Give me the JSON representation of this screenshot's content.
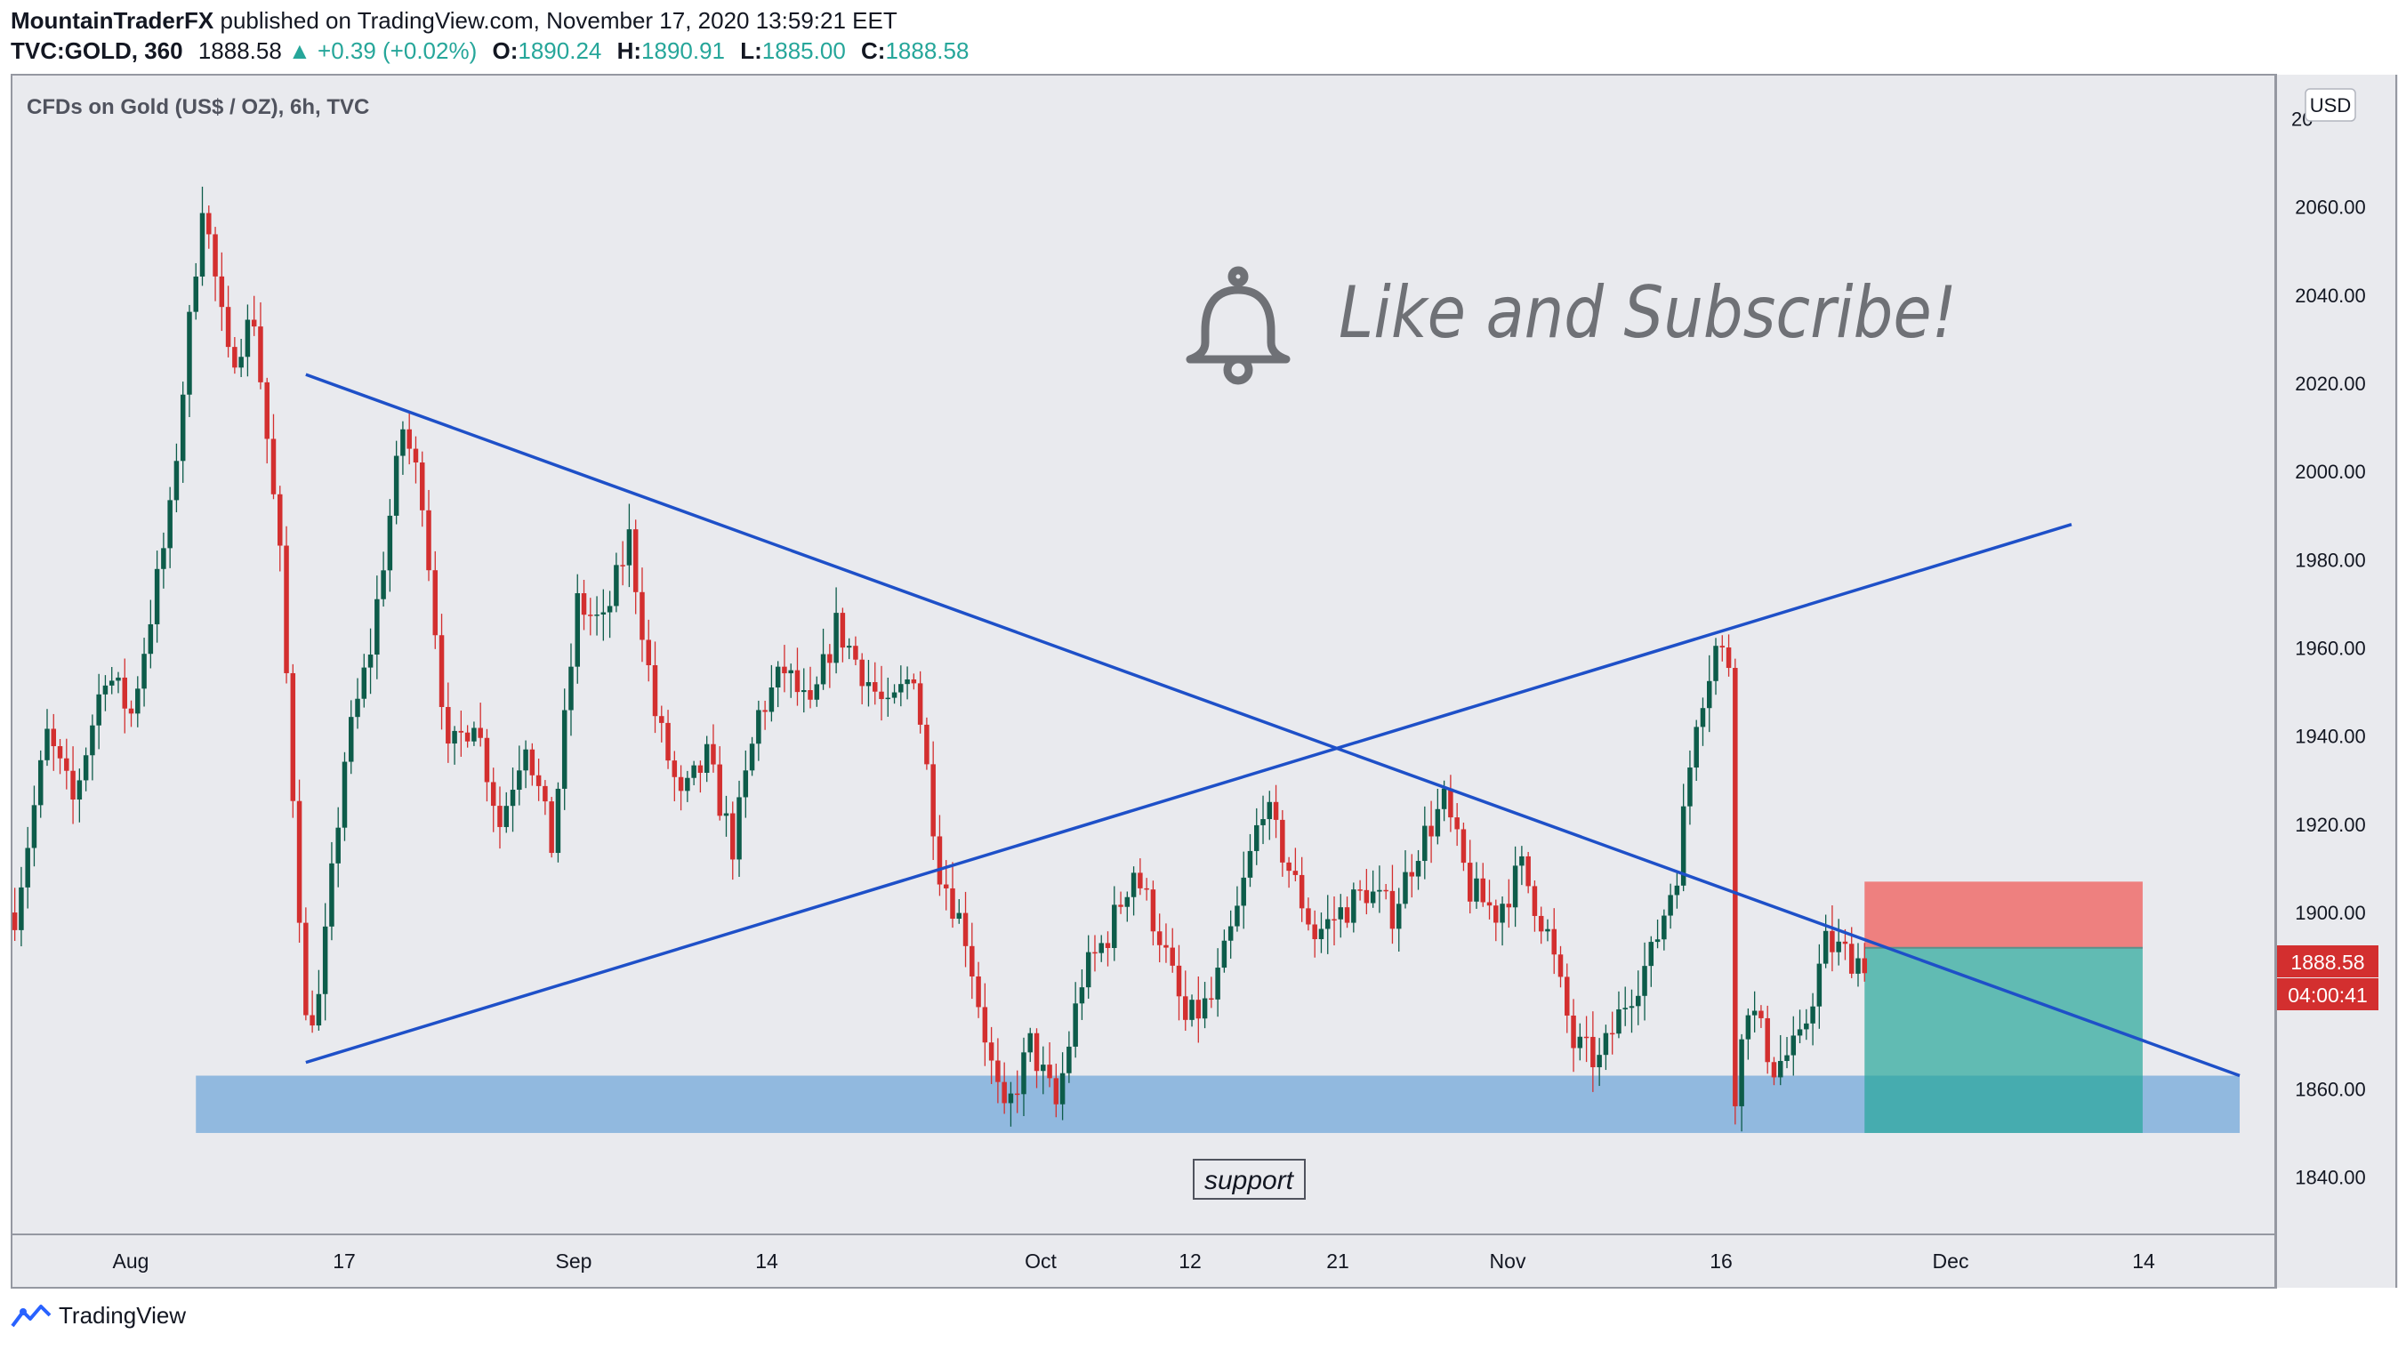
{
  "header": {
    "author": "MountainTraderFX",
    "published_text": "published on TradingView.com, November 17, 2020 13:59:21 EET",
    "symbol": "TVC:GOLD, 360",
    "last": "1888.58",
    "change": "+0.39 (+0.02%)",
    "open_label": "O:",
    "open": "1890.24",
    "high_label": "H:",
    "high": "1890.91",
    "low_label": "L:",
    "low": "1885.00",
    "close_label": "C:",
    "close": "1888.58"
  },
  "chart_data": {
    "type": "candlestick",
    "title": "CFDs on Gold (US$ / OZ), 6h, TVC",
    "currency": "USD",
    "x_ticks": [
      "Aug",
      "17",
      "Sep",
      "14",
      "Oct",
      "12",
      "21",
      "Nov",
      "16",
      "Dec",
      "14"
    ],
    "y_ticks": [
      1840,
      1860,
      1880,
      1900,
      1920,
      1940,
      1960,
      1980,
      2000,
      2020,
      2040,
      2060
    ],
    "top_tick_partial": "20",
    "ylim": [
      1827,
      2090
    ],
    "price_label": "1888.58",
    "countdown": "04:00:41",
    "annotation_text": "Like and Subscribe!",
    "support_label": "support",
    "colors": {
      "up": "#0d5c4a",
      "down": "#d32f2f",
      "trend": "#1e50c8",
      "support_zone": "#5b9bd5",
      "stop_zone": "#ef5350",
      "target_zone": "#26a69a",
      "background": "#e9eaee"
    },
    "price_path": [
      [
        0,
        1900
      ],
      [
        5,
        1940
      ],
      [
        9,
        1925
      ],
      [
        14,
        1955
      ],
      [
        18,
        1945
      ],
      [
        24,
        1990
      ],
      [
        29,
        2062
      ],
      [
        33,
        2025
      ],
      [
        37,
        2035
      ],
      [
        41,
        1980
      ],
      [
        45,
        1875
      ],
      [
        47,
        1880
      ],
      [
        51,
        1935
      ],
      [
        55,
        1960
      ],
      [
        60,
        2010
      ],
      [
        63,
        1995
      ],
      [
        67,
        1935
      ],
      [
        71,
        1945
      ],
      [
        75,
        1920
      ],
      [
        79,
        1940
      ],
      [
        83,
        1915
      ],
      [
        87,
        1970
      ],
      [
        91,
        1965
      ],
      [
        95,
        1985
      ],
      [
        99,
        1945
      ],
      [
        103,
        1925
      ],
      [
        107,
        1935
      ],
      [
        111,
        1915
      ],
      [
        115,
        1945
      ],
      [
        119,
        1955
      ],
      [
        123,
        1945
      ],
      [
        127,
        1965
      ],
      [
        131,
        1955
      ],
      [
        135,
        1945
      ],
      [
        139,
        1955
      ],
      [
        143,
        1910
      ],
      [
        147,
        1895
      ],
      [
        151,
        1865
      ],
      [
        153,
        1853
      ],
      [
        157,
        1870
      ],
      [
        161,
        1856
      ],
      [
        165,
        1885
      ],
      [
        169,
        1895
      ],
      [
        173,
        1910
      ],
      [
        177,
        1895
      ],
      [
        181,
        1875
      ],
      [
        185,
        1880
      ],
      [
        189,
        1900
      ],
      [
        193,
        1925
      ],
      [
        197,
        1910
      ],
      [
        201,
        1895
      ],
      [
        205,
        1900
      ],
      [
        209,
        1905
      ],
      [
        213,
        1900
      ],
      [
        217,
        1915
      ],
      [
        221,
        1925
      ],
      [
        225,
        1905
      ],
      [
        229,
        1900
      ],
      [
        233,
        1910
      ],
      [
        237,
        1895
      ],
      [
        241,
        1870
      ],
      [
        245,
        1866
      ],
      [
        249,
        1880
      ],
      [
        253,
        1890
      ],
      [
        257,
        1910
      ],
      [
        260,
        1945
      ],
      [
        263,
        1960
      ],
      [
        265,
        1957
      ],
      [
        266,
        1860
      ],
      [
        268,
        1880
      ],
      [
        272,
        1865
      ],
      [
        276,
        1870
      ],
      [
        280,
        1893
      ],
      [
        284,
        1890
      ],
      [
        286,
        1889
      ]
    ],
    "trendlines": [
      {
        "from": [
          45,
          2022
        ],
        "to": [
          344,
          1863
        ]
      },
      {
        "from": [
          45,
          1866
        ],
        "to": [
          318,
          1988
        ]
      }
    ],
    "support_zone": {
      "x": [
        28,
        344
      ],
      "y": [
        1850,
        1863
      ]
    },
    "position": {
      "x": [
        286,
        329
      ],
      "entry": 1892,
      "stop": 1907,
      "target": 1850
    },
    "bell_icon": "bell-icon"
  },
  "brand": {
    "name": "TradingView",
    "icon": "tradingview-logo-icon"
  }
}
